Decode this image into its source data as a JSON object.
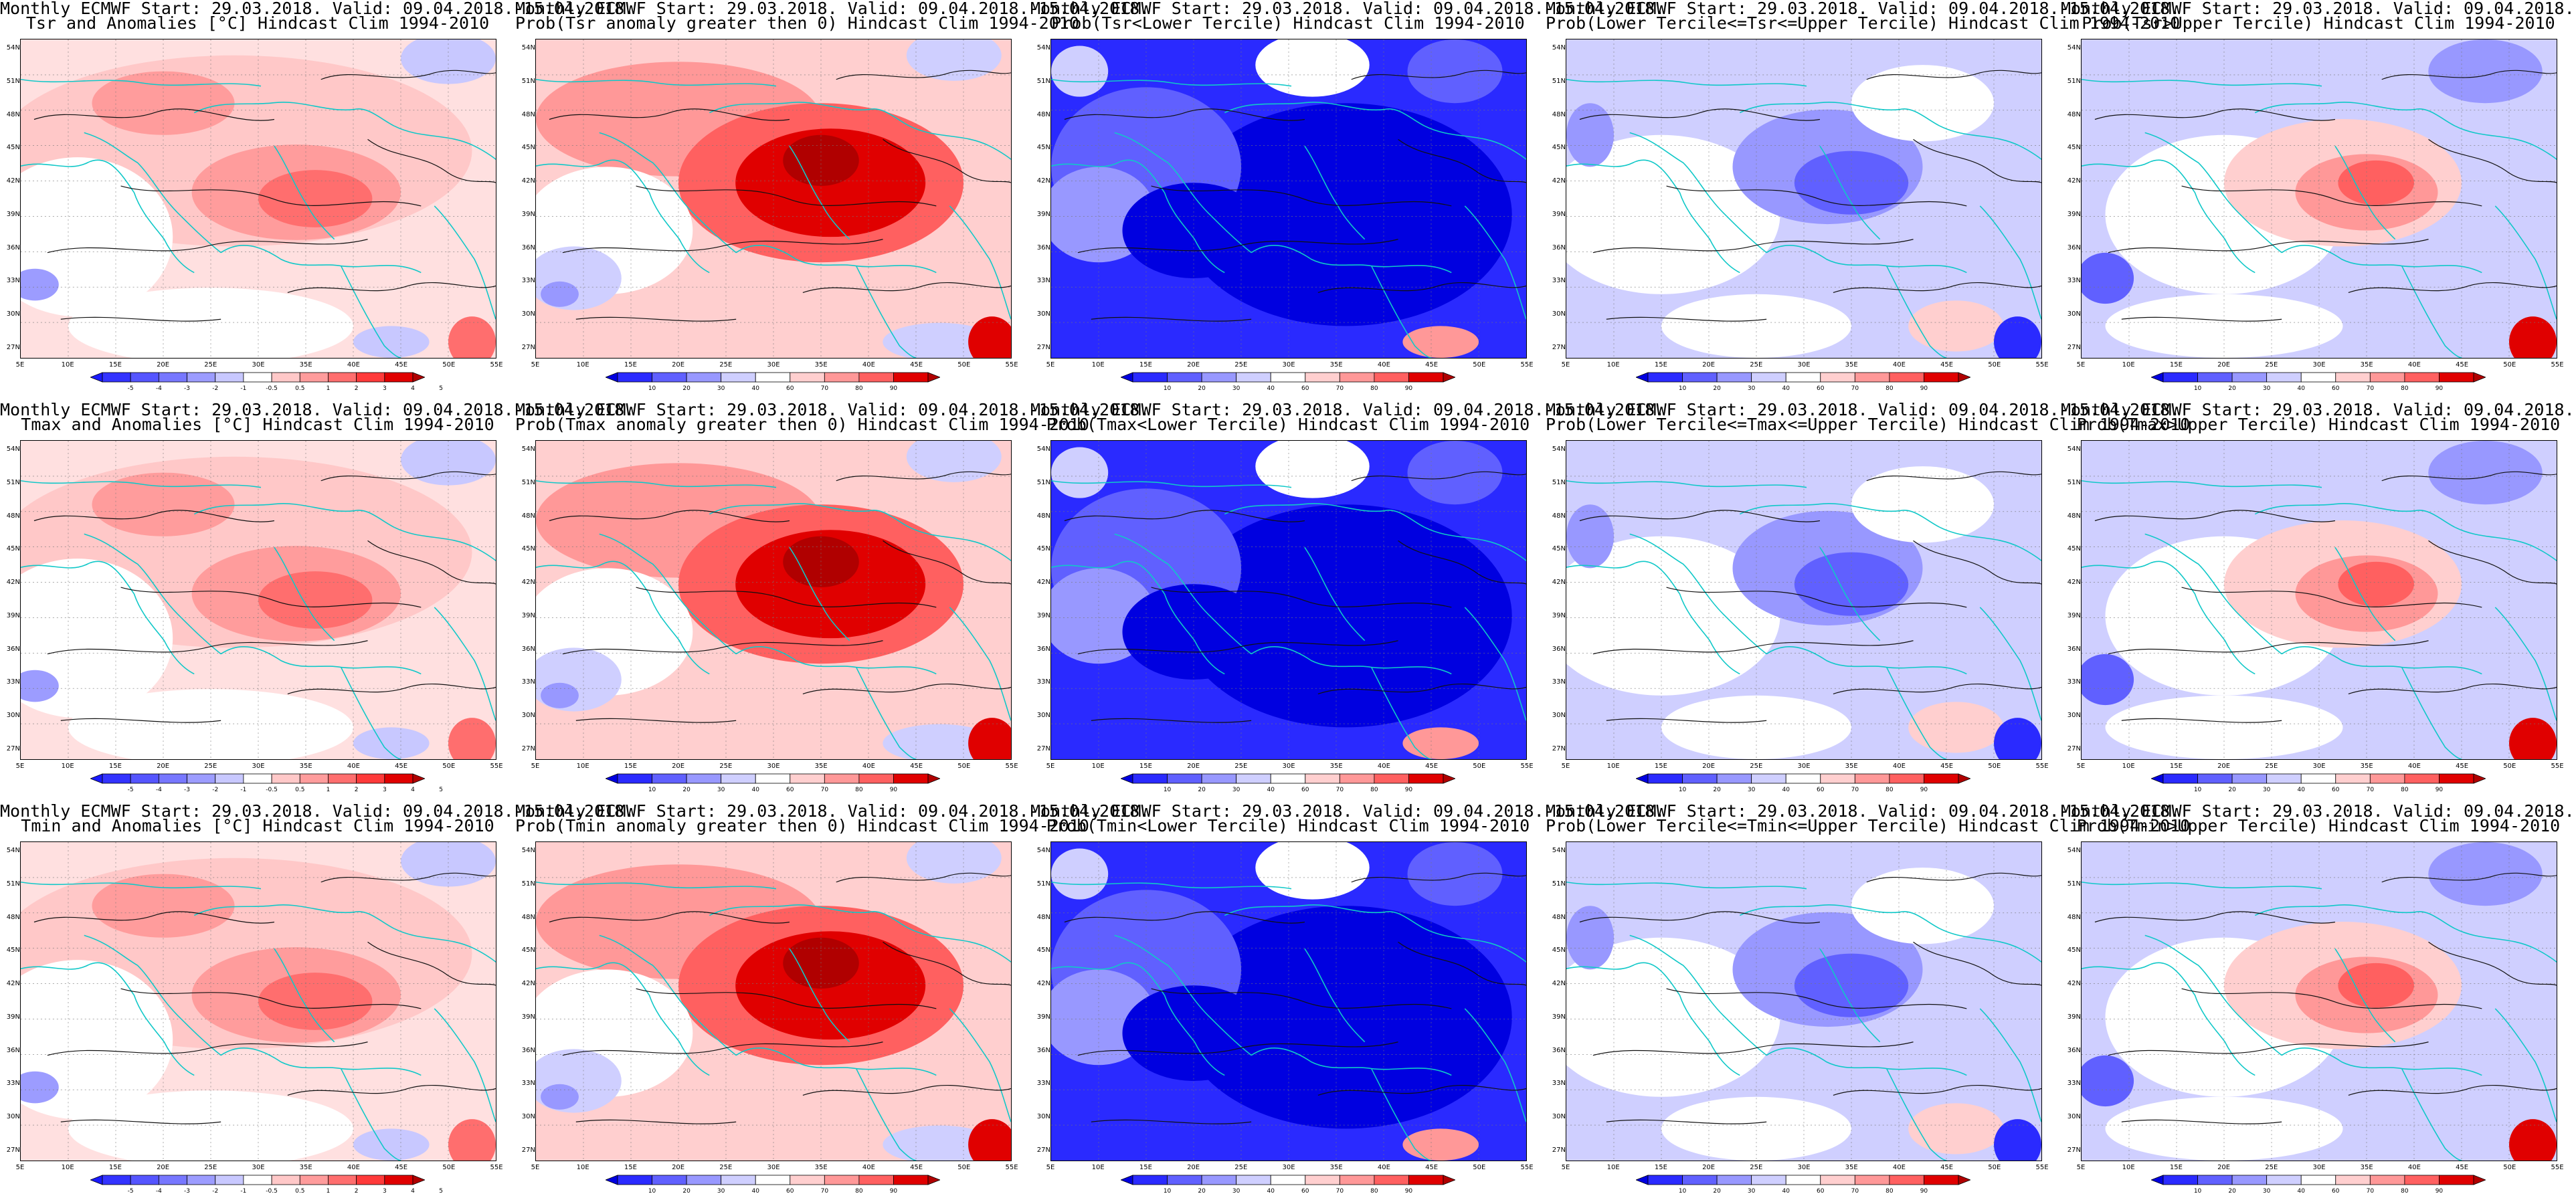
{
  "header_line": "Monthly ECMWF Start: 29.03.2018. Valid: 09.04.2018.-15.04.2018.",
  "axes": {
    "lat_ticks": [
      "54N",
      "51N",
      "48N",
      "45N",
      "42N",
      "39N",
      "36N",
      "33N",
      "30N",
      "27N"
    ],
    "lon_ticks": [
      "5E",
      "10E",
      "15E",
      "20E",
      "25E",
      "30E",
      "35E",
      "40E",
      "45E",
      "50E",
      "55E"
    ]
  },
  "colorbars": {
    "anomaly": {
      "labels": [
        "-5",
        "-4",
        "-3",
        "-2",
        "-1",
        "-0.5",
        "0.5",
        "1",
        "2",
        "3",
        "4",
        "5"
      ],
      "colors": [
        "#1a1aff",
        "#3333ff",
        "#5555ff",
        "#7777ff",
        "#9c9cff",
        "#c8c8ff",
        "#ffffff",
        "#ffc8c8",
        "#ff9c9c",
        "#ff6e6e",
        "#ff3a3a",
        "#e00000",
        "#b00000"
      ]
    },
    "probability": {
      "labels": [
        "10",
        "20",
        "30",
        "40",
        "60",
        "70",
        "80",
        "90"
      ],
      "colors": [
        "#0000e0",
        "#2a2aff",
        "#6060ff",
        "#9898ff",
        "#cfcfff",
        "#ffffff",
        "#ffcfcf",
        "#ff9898",
        "#ff6060",
        "#e00000",
        "#b00000"
      ]
    }
  },
  "panels": [
    {
      "title2": "Tsr and Anomalies [°C] Hindcast Clim 1994-2010",
      "scale": "anomaly",
      "field": "warm"
    },
    {
      "title2": "Prob(Tsr anomaly greater then 0) Hindcast Clim 1994-2010",
      "scale": "probability",
      "field": "hot"
    },
    {
      "title2": "Prob(Tsr<Lower Tercile) Hindcast Clim 1994-2010",
      "scale": "probability",
      "field": "cold"
    },
    {
      "title2": "Prob(Lower Tercile<=Tsr<=Upper Tercile) Hindcast Clim 1994-2010",
      "scale": "probability",
      "field": "mixed"
    },
    {
      "title2": "Prob(Tsr>Upper Tercile) Hindcast Clim 1994-2010",
      "scale": "probability",
      "field": "upper"
    },
    {
      "title2": "Tmax and Anomalies [°C] Hindcast Clim 1994-2010",
      "scale": "anomaly",
      "field": "warm"
    },
    {
      "title2": "Prob(Tmax anomaly greater then 0) Hindcast Clim 1994-2010",
      "scale": "probability",
      "field": "hot"
    },
    {
      "title2": "Prob(Tmax<Lower Tercile) Hindcast Clim 1994-2010",
      "scale": "probability",
      "field": "cold"
    },
    {
      "title2": "Prob(Lower Tercile<=Tmax<=Upper Tercile) Hindcast Clim 1994-2010",
      "scale": "probability",
      "field": "mixed"
    },
    {
      "title2": "Prob(Tmax>Upper Tercile) Hindcast Clim 1994-2010",
      "scale": "probability",
      "field": "upper"
    },
    {
      "title2": "Tmin and Anomalies [°C] Hindcast Clim 1994-2010",
      "scale": "anomaly",
      "field": "warm"
    },
    {
      "title2": "Prob(Tmin anomaly greater then 0) Hindcast Clim 1994-2010",
      "scale": "probability",
      "field": "hot"
    },
    {
      "title2": "Prob(Tmin<Lower Tercile) Hindcast Clim 1994-2010",
      "scale": "probability",
      "field": "cold"
    },
    {
      "title2": "Prob(Lower Tercile<=Tmin<=Upper Tercile) Hindcast Clim 1994-2010",
      "scale": "probability",
      "field": "mixed"
    },
    {
      "title2": "Prob(Tmin>Upper Tercile) Hindcast Clim 1994-2010",
      "scale": "probability",
      "field": "upper"
    }
  ]
}
